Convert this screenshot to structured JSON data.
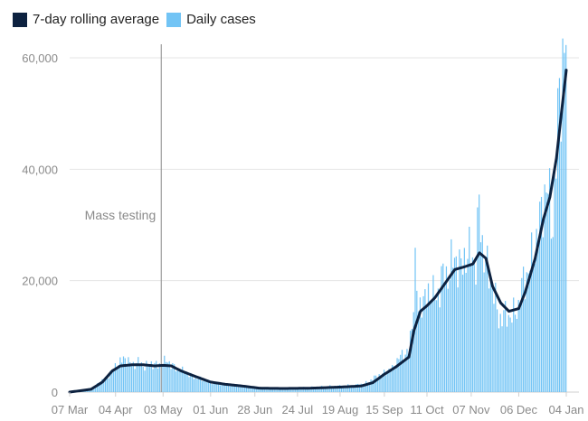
{
  "chart_data": {
    "type": "bar",
    "title": "",
    "xlabel": "",
    "ylabel": "",
    "ylim": [
      0,
      62000
    ],
    "grid": true,
    "legend_position": "top-left",
    "legend": [
      {
        "label": "7-day rolling average",
        "color": "#0d2240",
        "kind": "line"
      },
      {
        "label": "Daily cases",
        "color": "#72c4f5",
        "kind": "bar"
      }
    ],
    "y_ticks": [
      {
        "value": 0,
        "label": "0"
      },
      {
        "value": 20000,
        "label": "20,000"
      },
      {
        "value": 40000,
        "label": "40,000"
      },
      {
        "value": 60000,
        "label": "60,000"
      }
    ],
    "x_start": "2020-03-07",
    "x_end": "2021-01-04",
    "x_ticks": [
      {
        "date": "2020-03-07",
        "label": "07 Mar"
      },
      {
        "date": "2020-04-04",
        "label": "04 Apr"
      },
      {
        "date": "2020-05-03",
        "label": "03 May"
      },
      {
        "date": "2020-06-01",
        "label": "01 Jun"
      },
      {
        "date": "2020-06-28",
        "label": "28 Jun"
      },
      {
        "date": "2020-07-24",
        "label": "24 Jul"
      },
      {
        "date": "2020-08-19",
        "label": "19 Aug"
      },
      {
        "date": "2020-09-15",
        "label": "15 Sep"
      },
      {
        "date": "2020-10-11",
        "label": "11 Oct"
      },
      {
        "date": "2020-11-07",
        "label": "07 Nov"
      },
      {
        "date": "2020-12-06",
        "label": "06 Dec"
      },
      {
        "date": "2021-01-04",
        "label": "04 Jan"
      }
    ],
    "annotations": [
      {
        "date": "2020-05-03",
        "label": "Mass testing"
      }
    ],
    "series": [
      {
        "name": "Daily cases",
        "kind": "bar",
        "color": "#72c4f5",
        "points": [
          [
            "2020-03-07",
            0
          ],
          [
            "2020-03-15",
            300
          ],
          [
            "2020-03-22",
            900
          ],
          [
            "2020-03-29",
            2500
          ],
          [
            "2020-04-02",
            3800
          ],
          [
            "2020-04-05",
            5000
          ],
          [
            "2020-04-08",
            5600
          ],
          [
            "2020-04-10",
            6200
          ],
          [
            "2020-04-14",
            4800
          ],
          [
            "2020-04-18",
            5400
          ],
          [
            "2020-04-22",
            4600
          ],
          [
            "2020-04-26",
            5200
          ],
          [
            "2020-04-30",
            4700
          ],
          [
            "2020-05-03",
            5300
          ],
          [
            "2020-05-06",
            5600
          ],
          [
            "2020-05-10",
            4400
          ],
          [
            "2020-05-14",
            3900
          ],
          [
            "2020-05-20",
            3000
          ],
          [
            "2020-05-26",
            2300
          ],
          [
            "2020-06-01",
            1800
          ],
          [
            "2020-06-08",
            1400
          ],
          [
            "2020-06-15",
            1200
          ],
          [
            "2020-06-22",
            1000
          ],
          [
            "2020-06-28",
            900
          ],
          [
            "2020-07-05",
            650
          ],
          [
            "2020-07-15",
            700
          ],
          [
            "2020-07-24",
            750
          ],
          [
            "2020-08-01",
            850
          ],
          [
            "2020-08-10",
            1000
          ],
          [
            "2020-08-19",
            1100
          ],
          [
            "2020-08-28",
            1200
          ],
          [
            "2020-09-05",
            1700
          ],
          [
            "2020-09-10",
            2800
          ],
          [
            "2020-09-15",
            3400
          ],
          [
            "2020-09-20",
            4200
          ],
          [
            "2020-09-25",
            6500
          ],
          [
            "2020-09-30",
            7200
          ],
          [
            "2020-10-02",
            12000
          ],
          [
            "2020-10-04",
            22900
          ],
          [
            "2020-10-06",
            14000
          ],
          [
            "2020-10-08",
            17000
          ],
          [
            "2020-10-11",
            16500
          ],
          [
            "2020-10-14",
            19000
          ],
          [
            "2020-10-17",
            16000
          ],
          [
            "2020-10-20",
            21000
          ],
          [
            "2020-10-23",
            20500
          ],
          [
            "2020-10-26",
            23000
          ],
          [
            "2020-10-29",
            24000
          ],
          [
            "2020-11-01",
            22000
          ],
          [
            "2020-11-04",
            25000
          ],
          [
            "2020-11-07",
            24500
          ],
          [
            "2020-11-10",
            23000
          ],
          [
            "2020-11-12",
            33500
          ],
          [
            "2020-11-14",
            26500
          ],
          [
            "2020-11-17",
            22000
          ],
          [
            "2020-11-21",
            18000
          ],
          [
            "2020-11-24",
            13000
          ],
          [
            "2020-11-28",
            14000
          ],
          [
            "2020-12-02",
            13500
          ],
          [
            "2020-12-06",
            15500
          ],
          [
            "2020-12-09",
            20000
          ],
          [
            "2020-12-12",
            21500
          ],
          [
            "2020-12-15",
            25000
          ],
          [
            "2020-12-18",
            28000
          ],
          [
            "2020-12-21",
            35000
          ],
          [
            "2020-12-24",
            36000
          ],
          [
            "2020-12-27",
            30500
          ],
          [
            "2020-12-29",
            41000
          ],
          [
            "2020-12-31",
            55500
          ],
          [
            "2021-01-02",
            58000
          ],
          [
            "2021-01-04",
            62300
          ]
        ]
      },
      {
        "name": "7-day rolling average",
        "kind": "line",
        "color": "#0d2240",
        "points": [
          [
            "2020-03-07",
            0
          ],
          [
            "2020-03-20",
            500
          ],
          [
            "2020-03-27",
            1800
          ],
          [
            "2020-04-02",
            3800
          ],
          [
            "2020-04-07",
            4700
          ],
          [
            "2020-04-14",
            4900
          ],
          [
            "2020-04-21",
            4900
          ],
          [
            "2020-04-28",
            4700
          ],
          [
            "2020-05-03",
            4800
          ],
          [
            "2020-05-08",
            4700
          ],
          [
            "2020-05-14",
            3800
          ],
          [
            "2020-05-21",
            3000
          ],
          [
            "2020-06-01",
            1800
          ],
          [
            "2020-06-10",
            1400
          ],
          [
            "2020-06-20",
            1100
          ],
          [
            "2020-07-01",
            700
          ],
          [
            "2020-07-15",
            650
          ],
          [
            "2020-08-01",
            700
          ],
          [
            "2020-08-19",
            900
          ],
          [
            "2020-09-01",
            1100
          ],
          [
            "2020-09-08",
            1700
          ],
          [
            "2020-09-15",
            3200
          ],
          [
            "2020-09-22",
            4500
          ],
          [
            "2020-09-30",
            6300
          ],
          [
            "2020-10-03",
            11000
          ],
          [
            "2020-10-07",
            14500
          ],
          [
            "2020-10-11",
            15500
          ],
          [
            "2020-10-16",
            17000
          ],
          [
            "2020-10-22",
            19500
          ],
          [
            "2020-10-28",
            22000
          ],
          [
            "2020-11-03",
            22500
          ],
          [
            "2020-11-08",
            23000
          ],
          [
            "2020-11-12",
            25000
          ],
          [
            "2020-11-16",
            24000
          ],
          [
            "2020-11-20",
            19000
          ],
          [
            "2020-11-25",
            16000
          ],
          [
            "2020-11-30",
            14500
          ],
          [
            "2020-12-06",
            15000
          ],
          [
            "2020-12-10",
            18000
          ],
          [
            "2020-12-16",
            24000
          ],
          [
            "2020-12-21",
            31000
          ],
          [
            "2020-12-25",
            35000
          ],
          [
            "2020-12-29",
            42000
          ],
          [
            "2021-01-01",
            50000
          ],
          [
            "2021-01-04",
            57800
          ]
        ]
      }
    ]
  }
}
